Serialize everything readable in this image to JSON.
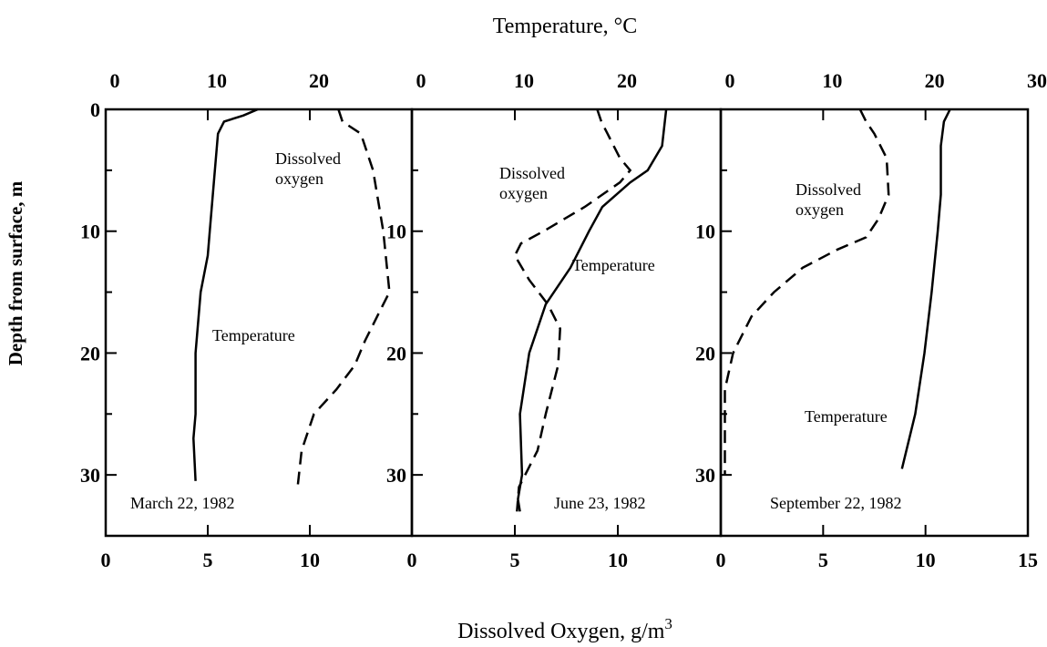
{
  "chart_data": [
    {
      "type": "line",
      "x2_label": "Temperature, °C",
      "y_label": "Depth from surface, m",
      "x_label": "Dissolved Oxygen, g/m",
      "x_label_sup": "3",
      "label": "March 22, 1982",
      "ylim": [
        0,
        35
      ],
      "yticks": [
        0,
        10,
        20,
        30
      ],
      "yminor": [
        5,
        15,
        25
      ],
      "xlim": [
        0,
        15
      ],
      "xticks": [
        0,
        5,
        10
      ],
      "x2lim": [
        0,
        30
      ],
      "x2ticks": [
        0,
        10,
        20
      ],
      "series": [
        {
          "axis": "x2",
          "style": "solid",
          "color": "#000000",
          "depth": [
            0,
            0.5,
            1,
            2,
            5,
            10,
            12,
            15,
            20,
            25,
            27,
            30.5
          ],
          "values": [
            14.9,
            13.5,
            11.6,
            11,
            10.7,
            10.2,
            10,
            9.3,
            8.8,
            8.8,
            8.6,
            8.8
          ]
        },
        {
          "axis": "x",
          "style": "dashed",
          "color": "#000000",
          "depth": [
            0,
            1,
            2,
            5,
            10,
            15,
            17,
            19,
            21,
            23,
            25,
            28,
            31
          ],
          "values": [
            11.4,
            11.6,
            12.5,
            13.1,
            13.6,
            13.9,
            13.3,
            12.7,
            12.2,
            11.3,
            10.2,
            9.6,
            9.4
          ]
        }
      ],
      "annotations": [
        {
          "lines": [
            "Dissolved",
            "oxygen"
          ]
        },
        {
          "lines": [
            "Temperature"
          ]
        }
      ]
    },
    {
      "type": "line",
      "label": "June 23, 1982",
      "ylim": [
        0,
        35
      ],
      "yticks": [
        10,
        20,
        30
      ],
      "yminor": [
        5,
        15,
        25
      ],
      "xlim": [
        0,
        15
      ],
      "xticks": [
        0,
        5,
        10
      ],
      "x2lim": [
        0,
        30
      ],
      "x2ticks": [
        0,
        10,
        20
      ],
      "series": [
        {
          "axis": "x2",
          "style": "solid",
          "color": "#000000",
          "depth": [
            0,
            3,
            5,
            6,
            8,
            10,
            13,
            16,
            20,
            25,
            30,
            32,
            33
          ],
          "values": [
            24.7,
            24.3,
            22.9,
            21.2,
            18.5,
            17.2,
            15.4,
            13,
            11.4,
            10.5,
            10.7,
            10.3,
            10.5
          ]
        },
        {
          "axis": "x",
          "style": "dashed",
          "color": "#000000",
          "depth": [
            0,
            1,
            2,
            4,
            5,
            6,
            8,
            10,
            11,
            12,
            14,
            16,
            18,
            21,
            25,
            28,
            31,
            33
          ],
          "values": [
            9.0,
            9.2,
            9.5,
            10.1,
            10.6,
            10.1,
            8.4,
            6.4,
            5.3,
            5.0,
            5.7,
            6.6,
            7.2,
            7.1,
            6.5,
            6.1,
            5.2,
            5.1
          ]
        }
      ],
      "annotations": [
        {
          "lines": [
            "Dissolved",
            "oxygen"
          ]
        },
        {
          "lines": [
            "Temperature"
          ]
        }
      ]
    },
    {
      "type": "line",
      "label": "September 22, 1982",
      "ylim": [
        0,
        35
      ],
      "yticks": [
        10,
        20,
        30
      ],
      "yminor": [
        5,
        15,
        25
      ],
      "xlim": [
        0,
        15
      ],
      "xticks": [
        0,
        5,
        10,
        15
      ],
      "x2lim": [
        0,
        30
      ],
      "x2ticks": [
        0,
        10,
        20,
        30
      ],
      "series": [
        {
          "axis": "x2",
          "style": "solid",
          "color": "#000000",
          "depth": [
            0,
            1,
            3,
            7,
            10,
            15,
            20,
            25,
            29.5
          ],
          "values": [
            22.4,
            21.8,
            21.5,
            21.5,
            21.2,
            20.6,
            19.9,
            19,
            17.7
          ]
        },
        {
          "axis": "x",
          "style": "dashed",
          "color": "#000000",
          "depth": [
            0,
            1,
            2,
            4,
            7,
            9,
            10.5,
            11.5,
            13,
            15,
            17,
            20,
            23,
            26,
            30
          ],
          "values": [
            6.8,
            7.1,
            7.5,
            8.1,
            8.2,
            7.7,
            7.1,
            5.7,
            4.0,
            2.6,
            1.5,
            0.6,
            0.2,
            0.2,
            0.2
          ]
        }
      ],
      "annotations": [
        {
          "lines": [
            "Dissolved",
            "oxygen"
          ]
        },
        {
          "lines": [
            "Temperature"
          ]
        }
      ]
    }
  ]
}
